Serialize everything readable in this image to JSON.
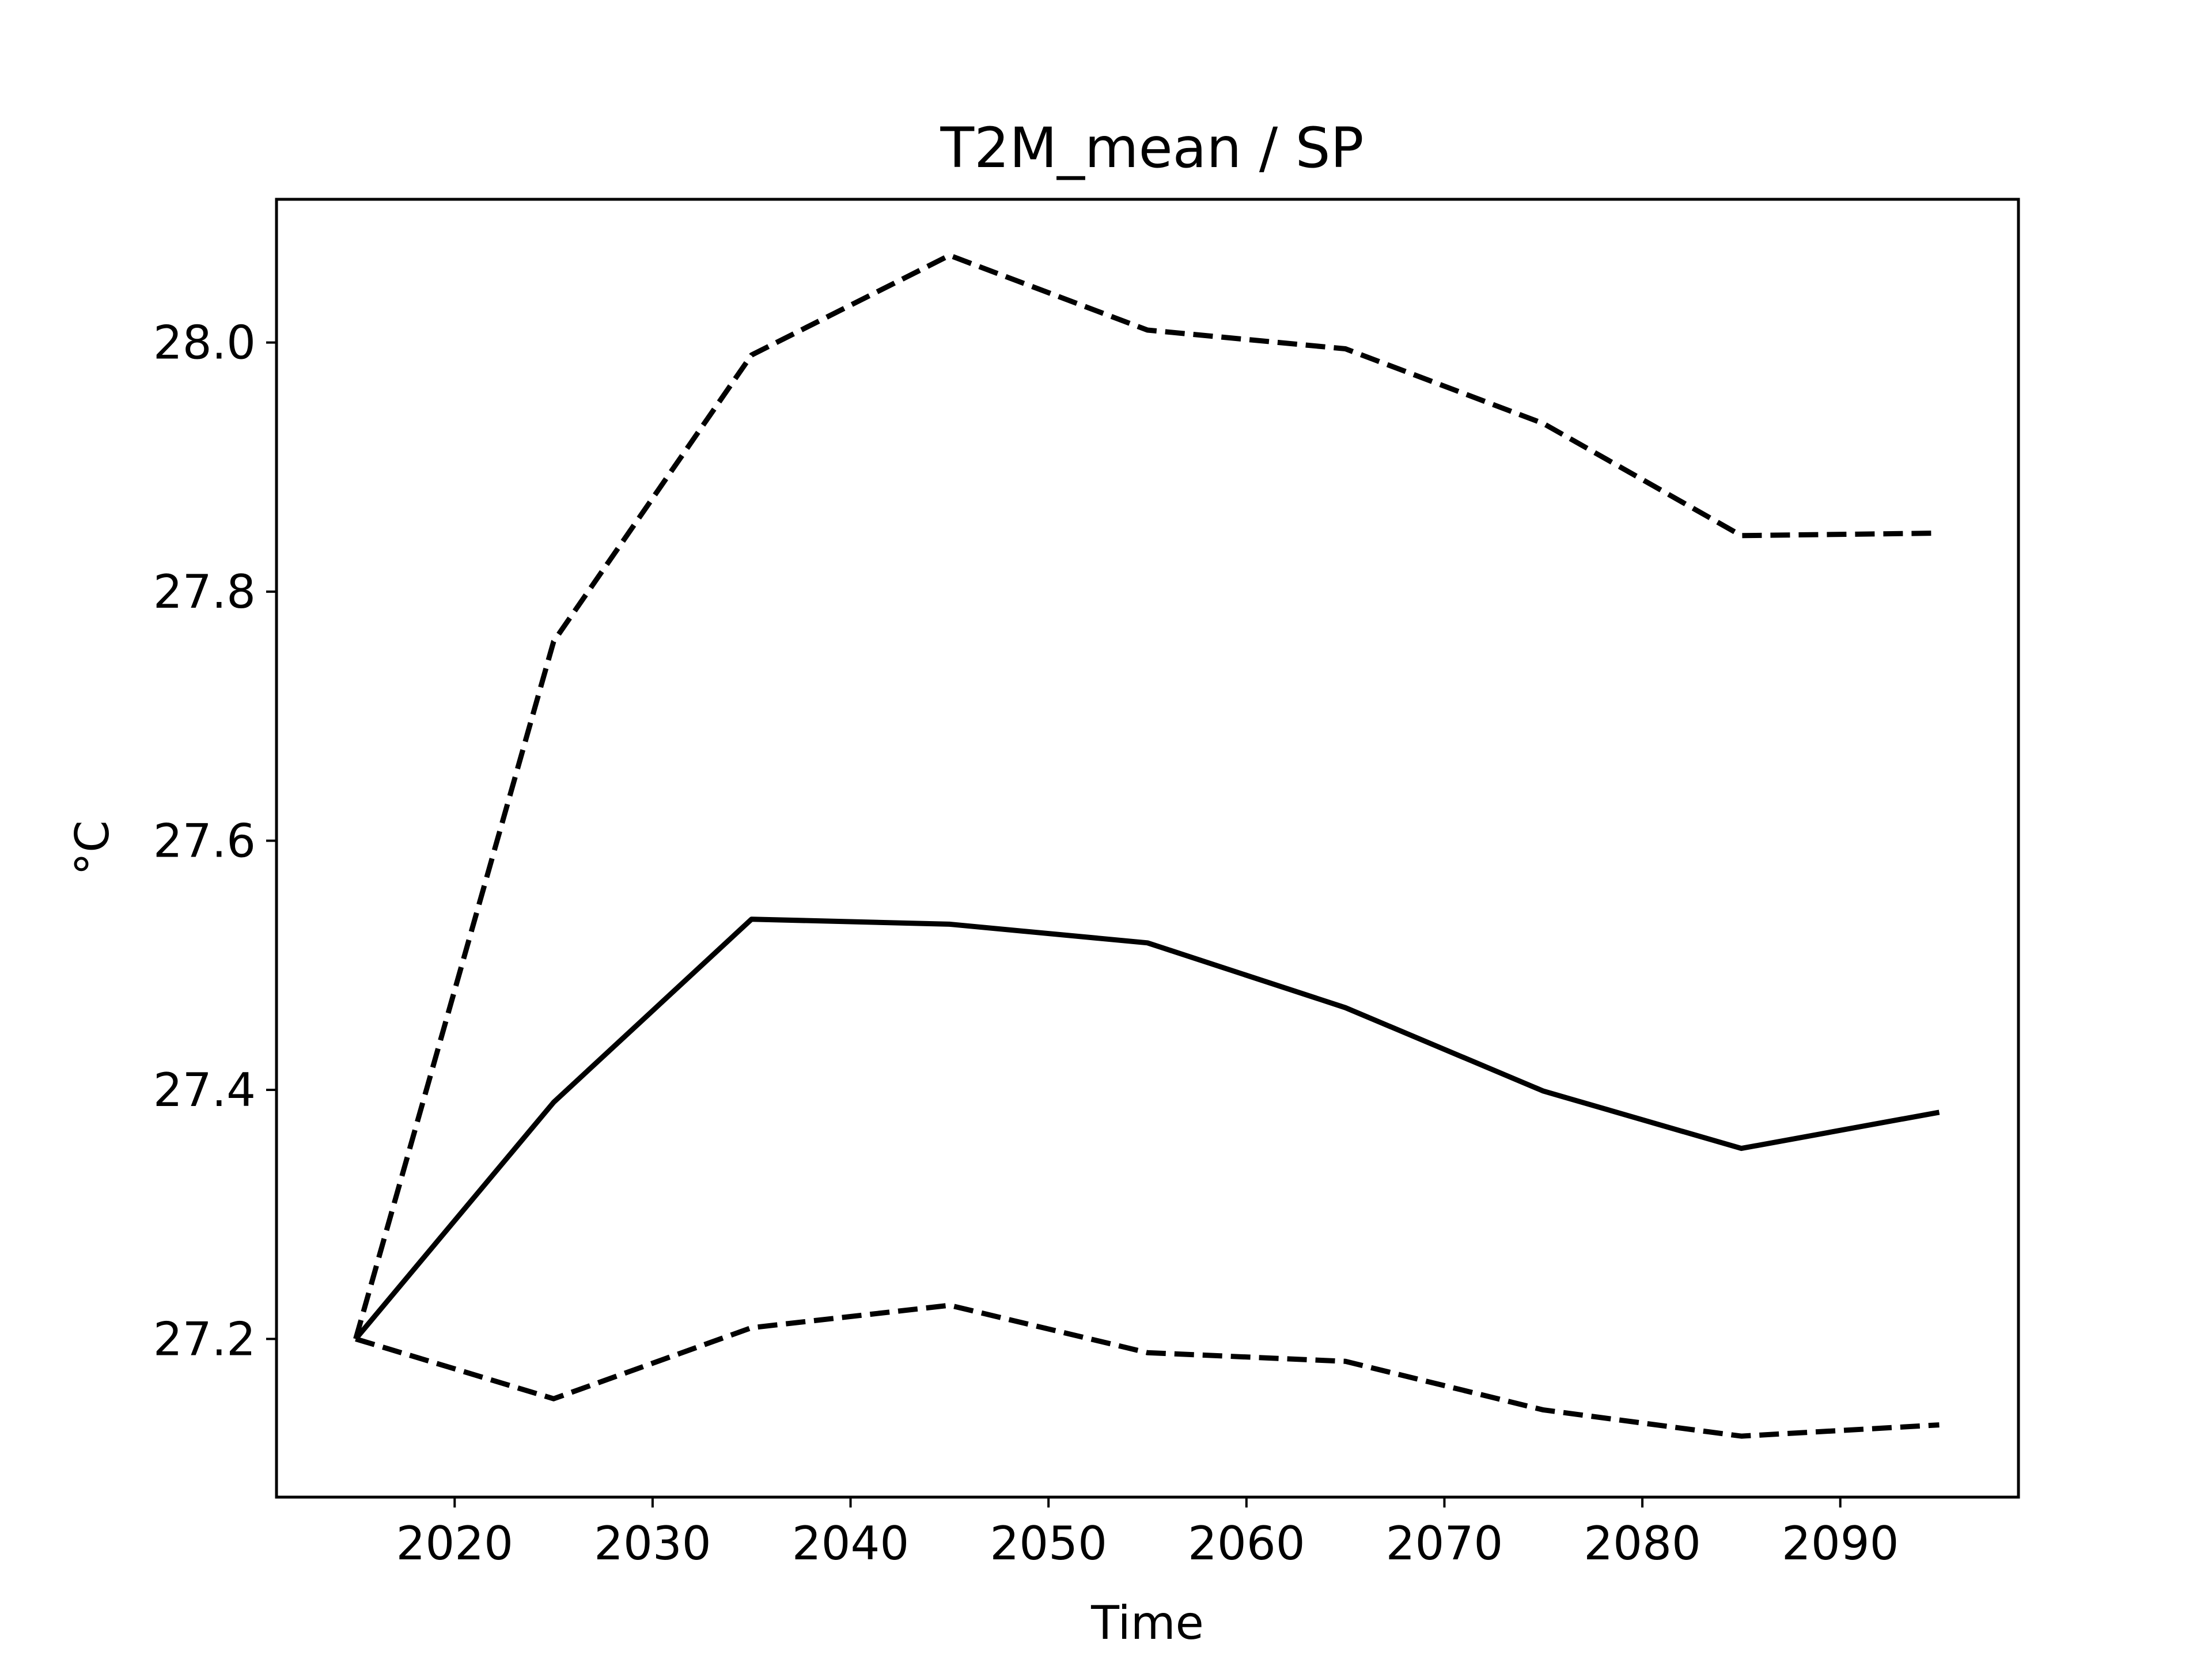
{
  "chart_data": {
    "type": "line",
    "title": "T2M_mean / SP",
    "xlabel": "Time",
    "ylabel": "°C",
    "xlim": [
      2011,
      2099
    ],
    "ylim": [
      27.073,
      28.115
    ],
    "xticks": [
      2020,
      2030,
      2040,
      2050,
      2060,
      2070,
      2080,
      2090
    ],
    "yticks": [
      27.2,
      27.4,
      27.6,
      27.8,
      28.0
    ],
    "ytick_labels": [
      "27.2",
      "27.4",
      "27.6",
      "27.8",
      "28.0"
    ],
    "grid": false,
    "legend": "none",
    "line_color": "#000000",
    "x": [
      2015,
      2025,
      2035,
      2045,
      2055,
      2065,
      2075,
      2085,
      2095
    ],
    "series": [
      {
        "style": "dashed",
        "values": [
          27.2,
          27.76,
          27.99,
          28.07,
          28.01,
          27.995,
          27.935,
          27.845,
          27.847
        ]
      },
      {
        "style": "solid",
        "values": [
          27.2,
          27.39,
          27.537,
          27.533,
          27.518,
          27.466,
          27.399,
          27.353,
          27.382
        ]
      },
      {
        "style": "dashed",
        "values": [
          27.2,
          27.152,
          27.209,
          27.227,
          27.189,
          27.182,
          27.143,
          27.122,
          27.131
        ]
      }
    ]
  }
}
